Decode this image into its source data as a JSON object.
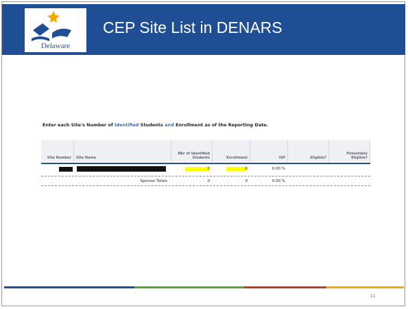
{
  "header": {
    "title": "CEP Site List in DENARS",
    "logo_text": "Delaware"
  },
  "instruction": [
    {
      "text": "Enter each Site's Number of ",
      "highlight": false
    },
    {
      "text": "Identified",
      "highlight": true
    },
    {
      "text": " Students ",
      "highlight": false
    },
    {
      "text": "and",
      "highlight": true
    },
    {
      "text": " Enrollment as of the Reporting Date.",
      "highlight": false
    }
  ],
  "table": {
    "columns": [
      "Site Number",
      "Site Name",
      "Nbr of Identified Students",
      "Enrollment",
      "ISP",
      "Eligible?",
      "Potentially Eligible?"
    ],
    "rows": [
      [
        "0",
        "0",
        "0.00 %"
      ]
    ],
    "totals": {
      "label": "Sponsor Totals",
      "values": [
        "0",
        "0",
        "0.00 %"
      ]
    }
  },
  "footer": {
    "page_number": "11"
  }
}
